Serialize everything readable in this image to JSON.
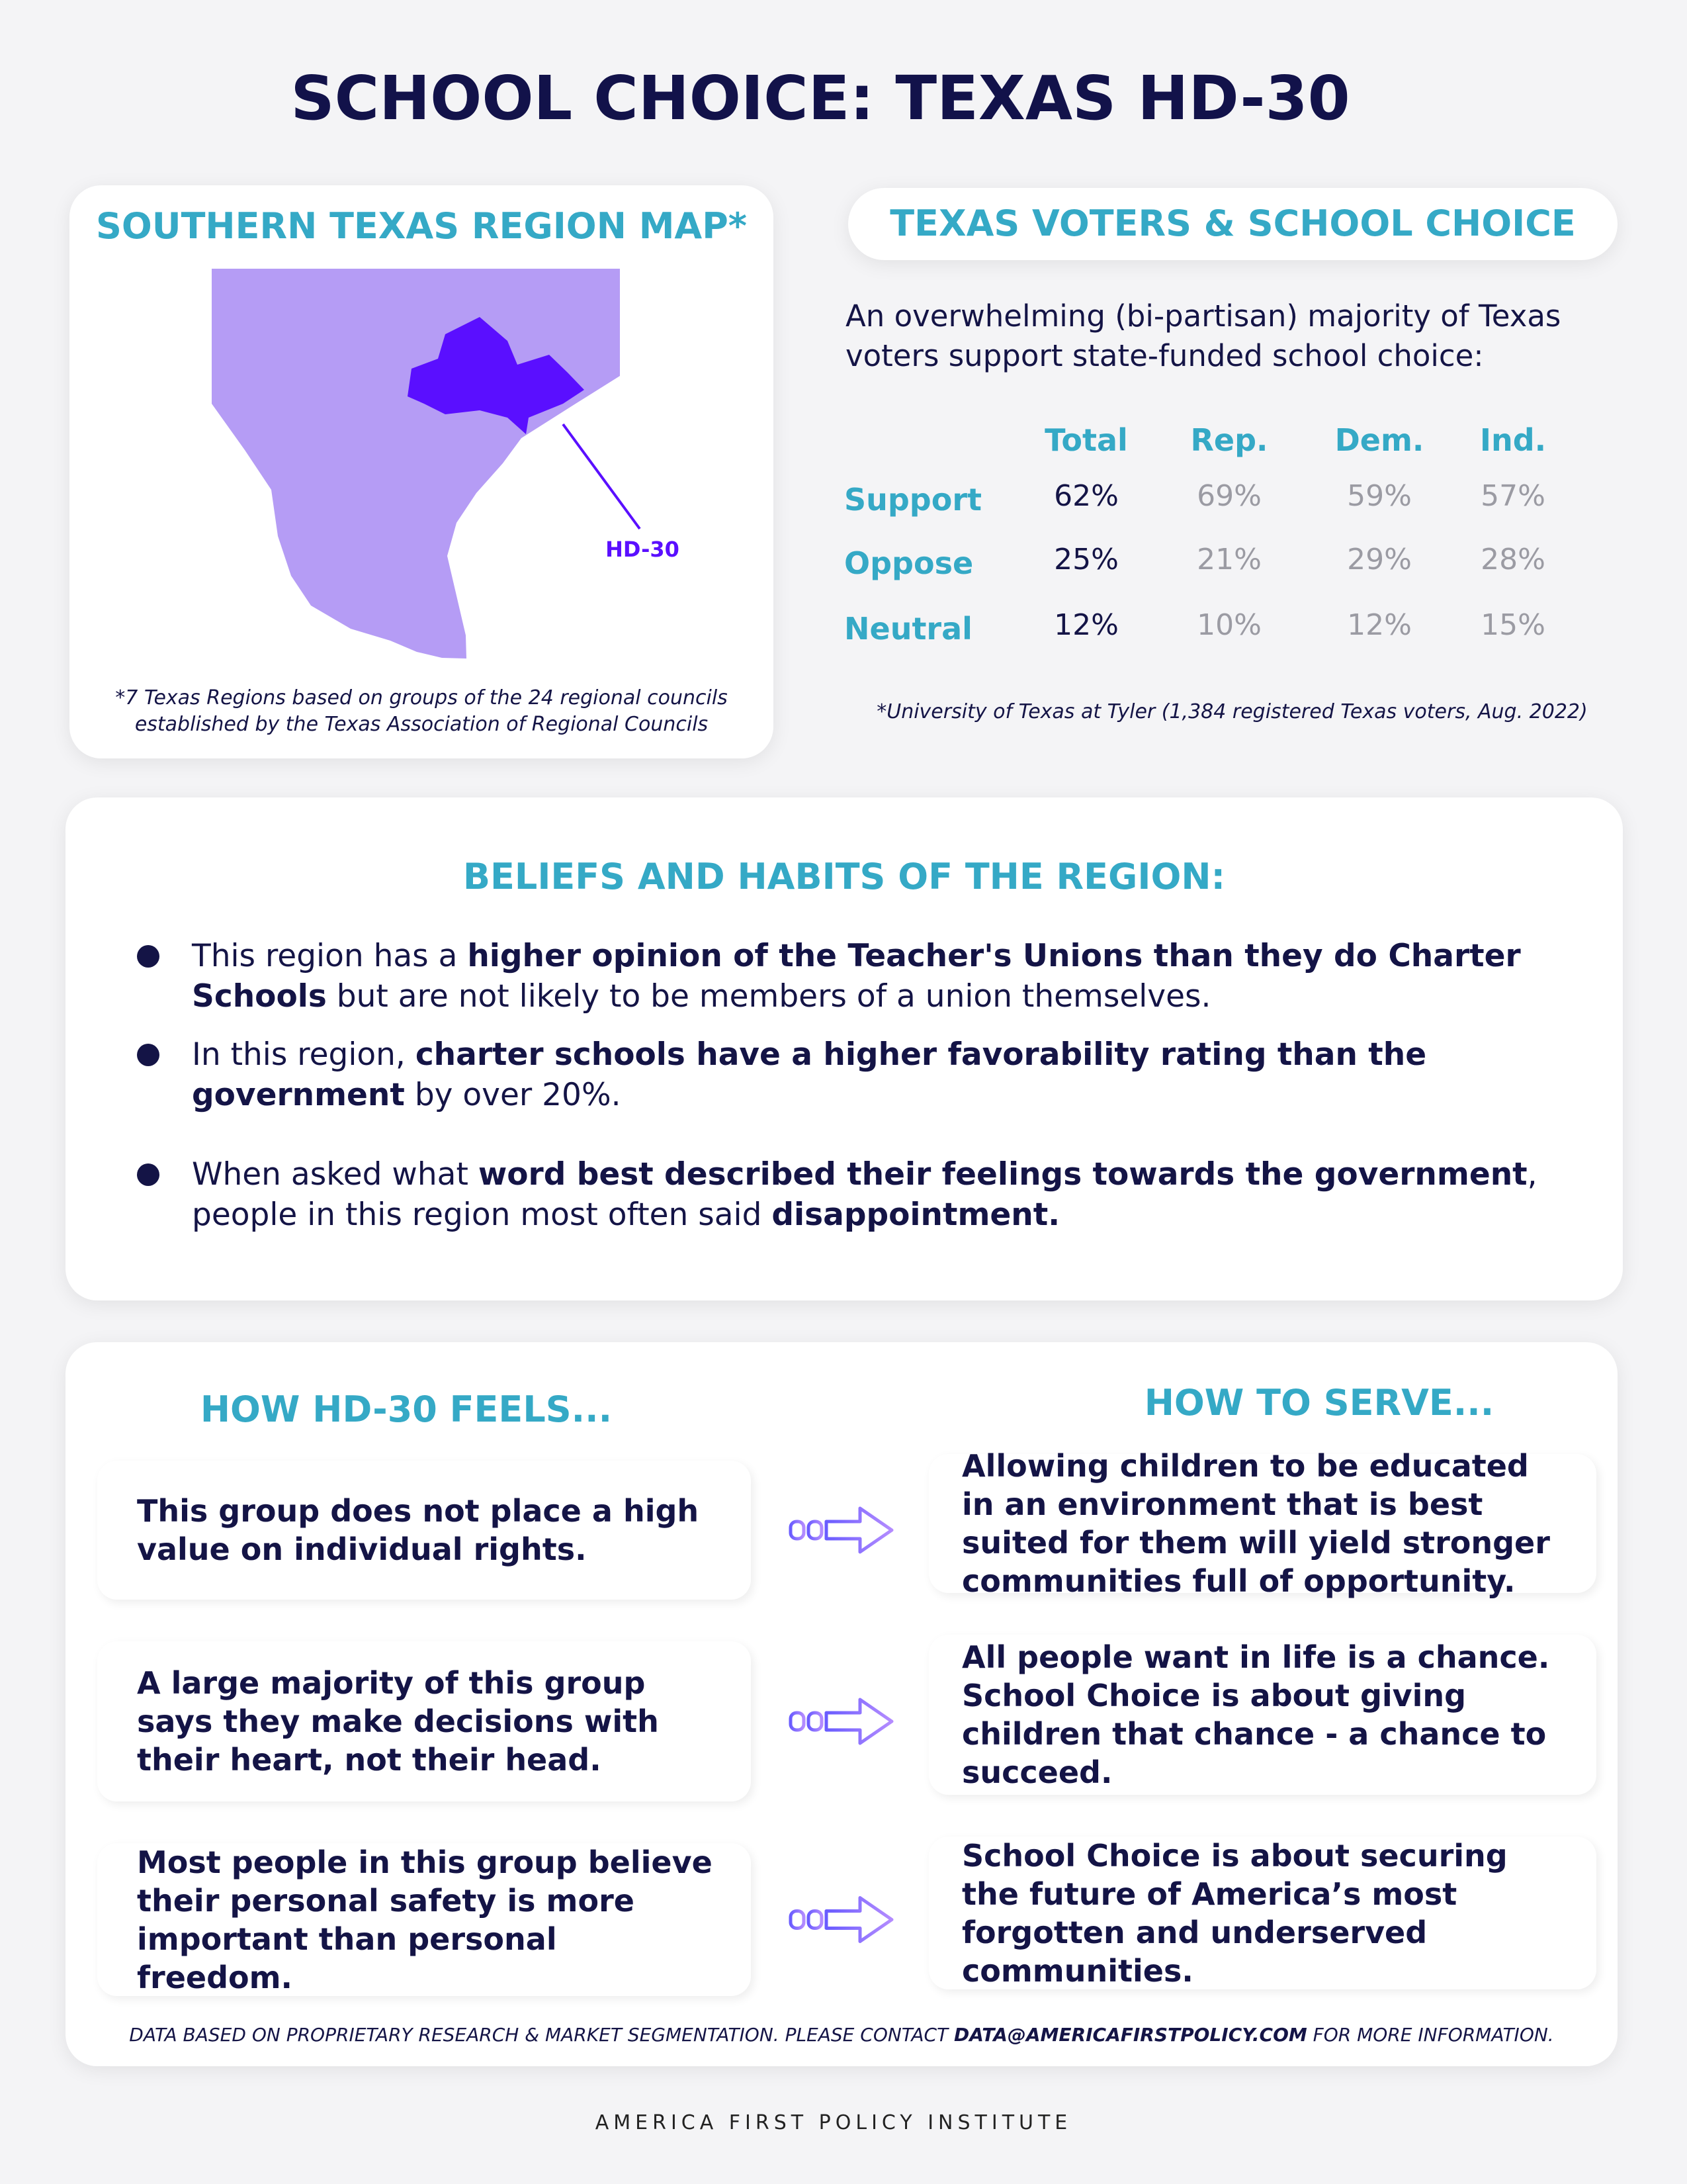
{
  "header": {
    "title": "SCHOOL CHOICE: TEXAS HD-30"
  },
  "map_card": {
    "title": "SOUTHERN TEXAS REGION MAP*",
    "label": "HD-30",
    "footnote": [
      "*7 Texas Regions based on groups of the 24 regional councils",
      "established by the Texas Association of Regional Councils"
    ]
  },
  "voters_card": {
    "title": "TEXAS VOTERS & SCHOOL CHOICE",
    "intro": "An overwhelming (bi-partisan) majority of Texas voters support state-funded school choice:",
    "table": {
      "columns": [
        "Total",
        "Rep.",
        "Dem.",
        "Ind."
      ],
      "rows": [
        {
          "label": "Support",
          "cells": [
            "62%",
            "69%",
            "59%",
            "57%"
          ]
        },
        {
          "label": "Oppose",
          "cells": [
            "25%",
            "21%",
            "29%",
            "28%"
          ]
        },
        {
          "label": "Neutral",
          "cells": [
            "12%",
            "10%",
            "12%",
            "15%"
          ]
        }
      ]
    },
    "source": "*University of Texas at Tyler (1,384 registered Texas voters, Aug. 2022)"
  },
  "beliefs": {
    "title": "BELIEFS AND HABITS OF THE REGION:",
    "bullets": [
      [
        {
          "text": "This region has a ",
          "bold": false
        },
        {
          "text": "higher opinion of the Teacher's Unions than they do Charter Schools",
          "bold": true
        },
        {
          "text": " but are not likely to be members of a union themselves.",
          "bold": false
        }
      ],
      [
        {
          "text": "In this region, ",
          "bold": false
        },
        {
          "text": "charter schools have a higher favorability rating than the government",
          "bold": true
        },
        {
          "text": " by over 20%.",
          "bold": false
        }
      ],
      [
        {
          "text": "When asked what ",
          "bold": false
        },
        {
          "text": "word best described their feelings towards the government",
          "bold": true
        },
        {
          "text": ", people in this region most often said ",
          "bold": false
        },
        {
          "text": "disappointment.",
          "bold": true
        }
      ]
    ]
  },
  "feels_serve": {
    "left_title": "HOW HD-30 FEELS...",
    "right_title": "HOW TO SERVE...",
    "rows": [
      {
        "feels": "This group does not place a high value on individual rights.",
        "serve": "Allowing children to be educated in an environment that is best suited for them will yield stronger communities full of opportunity."
      },
      {
        "feels": "A large majority of this group says they make decisions with their heart, not their head.",
        "serve": "All people want in life is a chance. School Choice is about giving children that chance - a chance to succeed."
      },
      {
        "feels": "Most people in this group believe their personal safety is more important than personal freedom.",
        "serve": "School Choice is about securing the future of America’s most forgotten and underserved communities."
      }
    ]
  },
  "disclaimer": [
    {
      "text": "DATA BASED ON PROPRIETARY RESEARCH & MARKET SEGMENTATION. PLEASE CONTACT ",
      "bold": false
    },
    {
      "text": "DATA@AMERICAFIRSTPOLICY.COM",
      "bold": true
    },
    {
      "text": " FOR MORE INFORMATION.",
      "bold": false
    }
  ],
  "footer": {
    "organization": "AMERICA FIRST POLICY INSTITUTE"
  }
}
